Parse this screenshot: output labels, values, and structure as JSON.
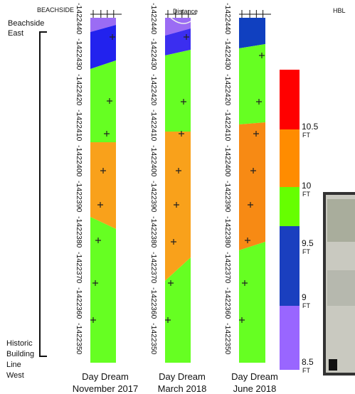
{
  "header": {
    "left_label": "BEACHSIDE",
    "center_label": "Distance",
    "right_label": "HBL"
  },
  "side_labels": {
    "top": [
      "Beachside",
      "East"
    ],
    "bottom": [
      "Historic",
      "Building",
      "Line",
      "West"
    ]
  },
  "panels": [
    {
      "title": [
        "Day Dream",
        "November 2017"
      ],
      "axis_labels": [
        "-1422440",
        "-1422430",
        "-1422420",
        "-1422410",
        "-1422400",
        "-1422390",
        "-1422380",
        "-1422370",
        "-1422360",
        "-1422350"
      ]
    },
    {
      "title": [
        "Day Dream",
        "March 2018"
      ],
      "axis_labels": [
        "-1422440",
        "-1422430",
        "-1422420",
        "-1422410",
        "-1422400",
        "-1422390",
        "-1422380",
        "-1422370",
        "-1422360",
        "-1422350"
      ]
    },
    {
      "title": [
        "Day Dream",
        "June 2018"
      ],
      "axis_labels": [
        "-1422440",
        "-1422430",
        "-1422420",
        "-1422410",
        "-1422400",
        "-1422390",
        "-1422380",
        "-1422370",
        "-1422360",
        "-1422350"
      ]
    }
  ],
  "legend": {
    "ticks": [
      10.5,
      10,
      9.5,
      9,
      8.5
    ],
    "unit": "FT"
  }
}
